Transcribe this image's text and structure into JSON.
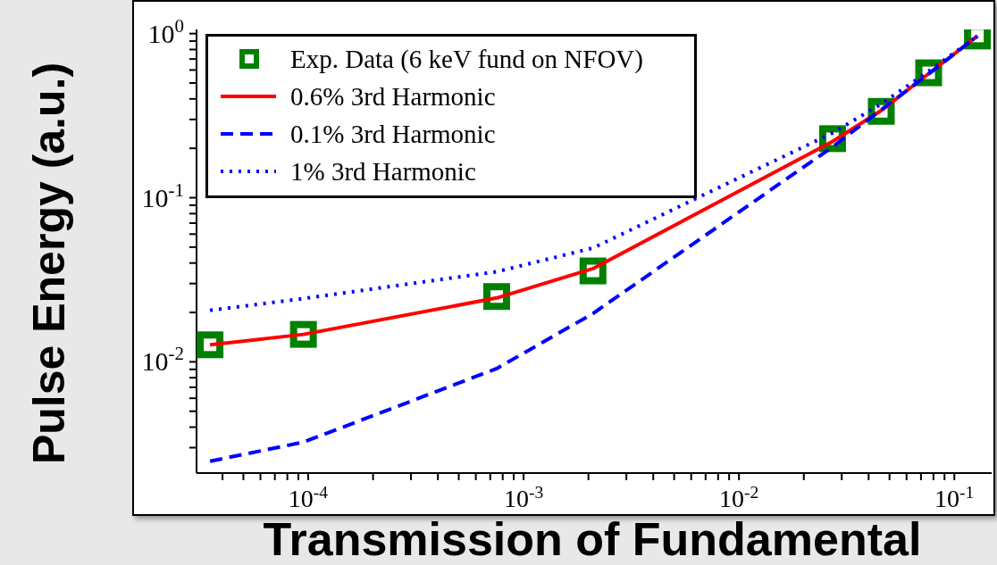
{
  "chart_data": {
    "type": "line",
    "xlabel": "Transmission of Fundamental",
    "ylabel": "Pulse Energy (a.u.)",
    "log": "xy",
    "legend": "top left",
    "x": [
      3.5e-05,
      9.5e-05,
      0.00075,
      0.0021,
      0.0272,
      0.0458,
      0.076,
      0.128
    ],
    "xlim": [
      3.03e-05,
      0.149
    ],
    "ylim": [
      0.0021,
      1.06
    ],
    "xticks": [
      {
        "value": 4e-05,
        "label": null
      },
      {
        "value": 5e-05,
        "label": null
      },
      {
        "value": 6e-05,
        "label": null
      },
      {
        "value": 7e-05,
        "label": null
      },
      {
        "value": 8e-05,
        "label": null
      },
      {
        "value": 9e-05,
        "label": null
      },
      {
        "value": 0.0001,
        "label": "10$^{-4}$"
      },
      {
        "value": 0.0002,
        "label": null
      },
      {
        "value": 0.0003,
        "label": null
      },
      {
        "value": 0.0004,
        "label": null
      },
      {
        "value": 0.0005,
        "label": null
      },
      {
        "value": 0.0006,
        "label": null
      },
      {
        "value": 0.0007,
        "label": null
      },
      {
        "value": 0.0008,
        "label": null
      },
      {
        "value": 0.0009,
        "label": null
      },
      {
        "value": 0.001,
        "label": "10$^{-3}$"
      },
      {
        "value": 0.002,
        "label": null
      },
      {
        "value": 0.003,
        "label": null
      },
      {
        "value": 0.004,
        "label": null
      },
      {
        "value": 0.005,
        "label": null
      },
      {
        "value": 0.006,
        "label": null
      },
      {
        "value": 0.007,
        "label": null
      },
      {
        "value": 0.008,
        "label": null
      },
      {
        "value": 0.009,
        "label": null
      },
      {
        "value": 0.01,
        "label": "10$^{-2}$"
      },
      {
        "value": 0.02,
        "label": null
      },
      {
        "value": 0.03,
        "label": null
      },
      {
        "value": 0.04,
        "label": null
      },
      {
        "value": 0.05,
        "label": null
      },
      {
        "value": 0.06,
        "label": null
      },
      {
        "value": 0.07,
        "label": null
      },
      {
        "value": 0.08,
        "label": null
      },
      {
        "value": 0.09,
        "label": null
      },
      {
        "value": 0.1,
        "label": "10$^{-1}$"
      }
    ],
    "yticks": [
      {
        "value": 0.003,
        "label": null
      },
      {
        "value": 0.004,
        "label": null
      },
      {
        "value": 0.005,
        "label": null
      },
      {
        "value": 0.006,
        "label": null
      },
      {
        "value": 0.007,
        "label": null
      },
      {
        "value": 0.008,
        "label": null
      },
      {
        "value": 0.009,
        "label": null
      },
      {
        "value": 0.01,
        "label": "10$^{-2}$"
      },
      {
        "value": 0.02,
        "label": null
      },
      {
        "value": 0.03,
        "label": null
      },
      {
        "value": 0.04,
        "label": null
      },
      {
        "value": 0.05,
        "label": null
      },
      {
        "value": 0.06,
        "label": null
      },
      {
        "value": 0.07,
        "label": null
      },
      {
        "value": 0.08,
        "label": null
      },
      {
        "value": 0.09,
        "label": null
      },
      {
        "value": 0.1,
        "label": "10$^{-1}$"
      },
      {
        "value": 0.2,
        "label": null
      },
      {
        "value": 0.3,
        "label": null
      },
      {
        "value": 0.4,
        "label": null
      },
      {
        "value": 0.5,
        "label": null
      },
      {
        "value": 0.6,
        "label": null
      },
      {
        "value": 0.7,
        "label": null
      },
      {
        "value": 0.8,
        "label": null
      },
      {
        "value": 0.9,
        "label": null
      },
      {
        "value": 1,
        "label": "10$^{0}$"
      }
    ],
    "series": [
      {
        "name": "Exp. Data (6 keV fund on NFOV)",
        "type": "scatter",
        "marker": "square",
        "color": "#008000",
        "values": [
          0.0127,
          0.0147,
          0.025,
          0.0358,
          0.229,
          0.336,
          0.577,
          0.967
        ]
      },
      {
        "name": "0.6% 3rd Harmonic",
        "type": "line",
        "line_style": "solid",
        "color": "#ff0000",
        "values": [
          0.0127,
          0.0147,
          0.0245,
          0.037,
          0.22,
          0.34,
          0.57,
          0.967
        ]
      },
      {
        "name": "0.1% 3rd Harmonic",
        "type": "line",
        "line_style": "dashed",
        "color": "#0000ff",
        "values": [
          0.00248,
          0.00324,
          0.0091,
          0.0197,
          0.204,
          0.344,
          0.567,
          0.967
        ]
      },
      {
        "name": "1% 3rd Harmonic",
        "type": "line",
        "line_style": "dotted",
        "color": "#0000ff",
        "values": [
          0.0206,
          0.0243,
          0.0354,
          0.0494,
          0.248,
          0.373,
          0.59,
          0.967
        ]
      }
    ]
  }
}
